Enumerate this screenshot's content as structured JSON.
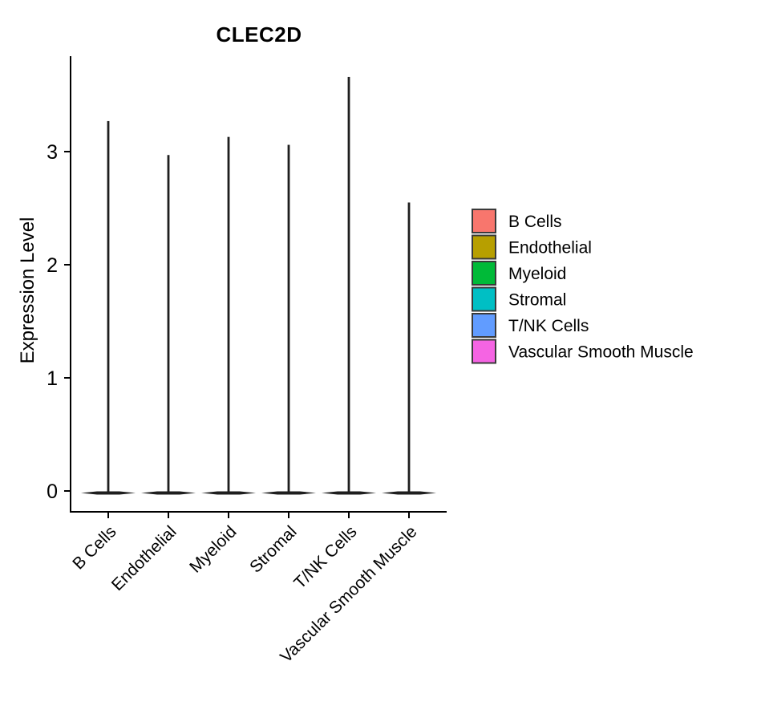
{
  "figure": {
    "title": "CLEC2D"
  },
  "chart_data": {
    "type": "violin",
    "title": "CLEC2D",
    "xlabel": "",
    "ylabel": "Expression Level",
    "categories": [
      "B Cells",
      "Endothelial",
      "Myeloid",
      "Stromal",
      "T/NK Cells",
      "Vascular Smooth Muscle"
    ],
    "series": [
      {
        "name": "B Cells",
        "color": "#F8766D",
        "max_expression": 3.27,
        "density_mode": 0
      },
      {
        "name": "Endothelial",
        "color": "#B79F00",
        "max_expression": 2.97,
        "density_mode": 0
      },
      {
        "name": "Myeloid",
        "color": "#00BA38",
        "max_expression": 3.13,
        "density_mode": 0
      },
      {
        "name": "Stromal",
        "color": "#00BFC4",
        "max_expression": 3.06,
        "density_mode": 0
      },
      {
        "name": "T/NK Cells",
        "color": "#619CFF",
        "max_expression": 3.66,
        "density_mode": 0
      },
      {
        "name": "Vascular Smooth Muscle",
        "color": "#F564E3",
        "max_expression": 2.55,
        "density_mode": 0
      }
    ],
    "yticks": [
      0,
      1,
      2,
      3
    ],
    "ylim": [
      -0.05,
      3.75
    ],
    "grid": false,
    "legend_position": "right",
    "shape_note": "each violin is a thin vertical spike from 0 up to max_expression with a wide flat density base at 0"
  }
}
